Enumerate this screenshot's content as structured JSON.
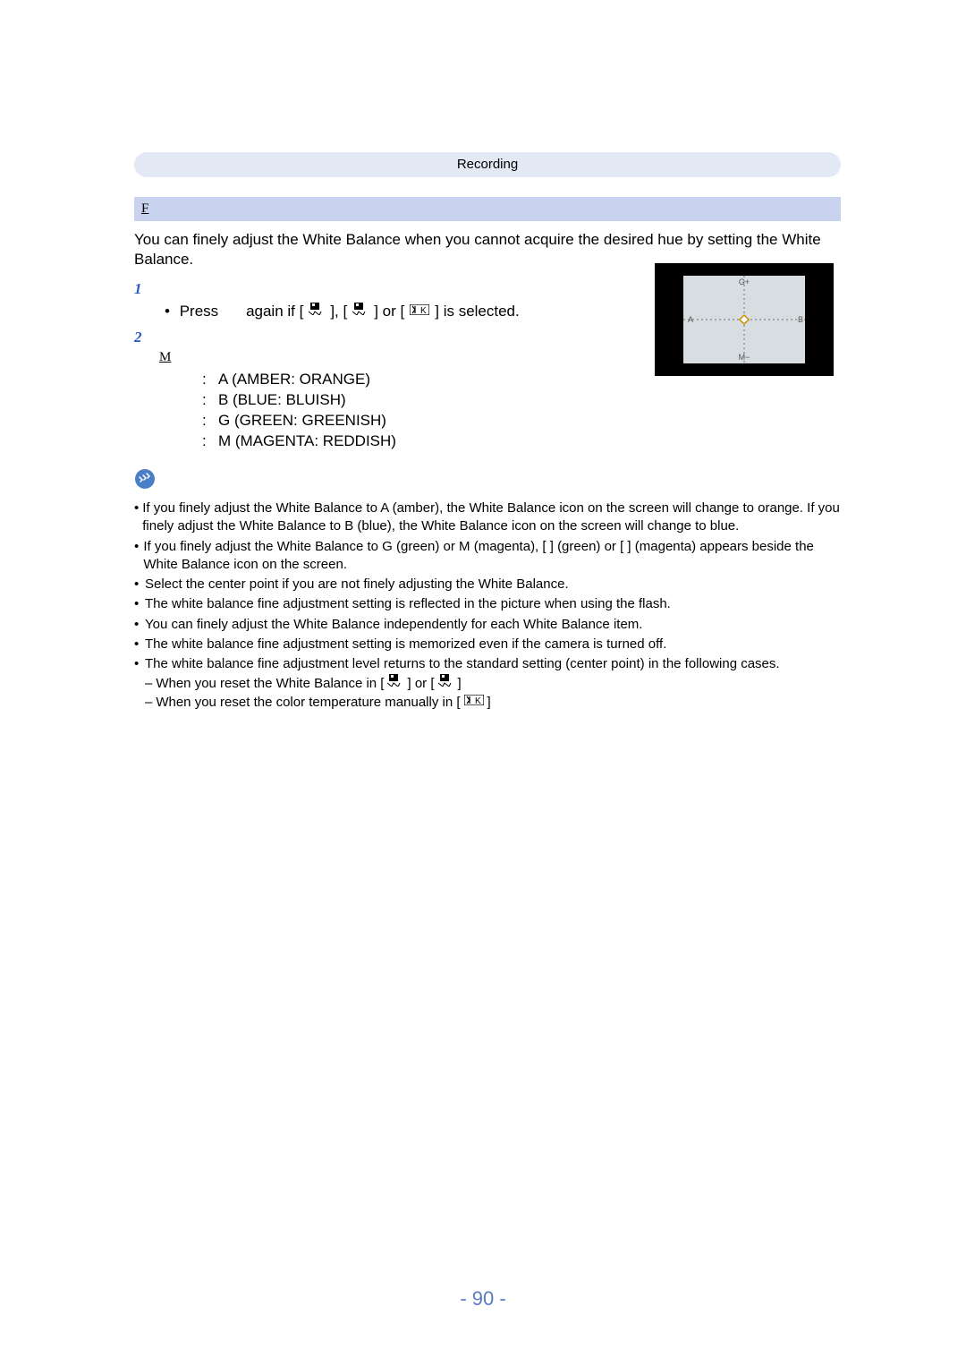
{
  "header": {
    "category": "Recording"
  },
  "subheader": {
    "label": "F"
  },
  "intro": "You can finely adjust the White Balance when you cannot acquire the desired hue by setting the White Balance.",
  "steps": {
    "s1_press": "Press",
    "s1_again": "again if [",
    "s1_mid1": "], [",
    "s1_mid2": "] or [",
    "s1_end": "] is selected.",
    "m_glyph": "M"
  },
  "directions": {
    "a": "A (AMBER: ORANGE)",
    "b": "B (BLUE: BLUISH)",
    "g": "G    (GREEN: GREENISH)",
    "m": "M    (MAGENTA: REDDISH)"
  },
  "notes": {
    "n1": "If you finely adjust the White Balance to A (amber), the White Balance icon on the screen will change to orange. If you finely adjust the White Balance to B (blue), the White Balance icon on the screen will change to blue.",
    "n2": "If you finely adjust the White Balance to G    (green) or M    (magenta), [   ] (green) or [   ] (magenta) appears beside the White Balance icon on the screen.",
    "n3": "Select the center point if you are not finely adjusting the White Balance.",
    "n4": "The white balance fine adjustment setting is reflected in the picture when using the flash.",
    "n5": "You can finely adjust the White Balance independently for each White Balance item.",
    "n6": "The white balance fine adjustment setting is memorized even if the camera is turned off.",
    "n7": "The white balance fine adjustment level returns to the standard setting (center point) in the following cases.",
    "n7a": "When you reset the White Balance in [",
    "n7a_mid": "] or [",
    "n7a_end": "]",
    "n7b": "When you reset the color temperature manually in [",
    "n7b_end": "]"
  },
  "diagram": {
    "labels": {
      "top": "G+",
      "bottom": "M−",
      "left": "A",
      "right": "B"
    },
    "colors": {
      "outer": "#000000",
      "inner": "#d7dde0",
      "axis": "#6f6f6f",
      "center_stroke": "#d08a00",
      "center_fill": "#ffffff",
      "label": "#555555"
    }
  },
  "pageNumber": "- 90 -",
  "colors": {
    "band_light": "#e3e8f5",
    "band_dark": "#c9d3ef",
    "step_num": "#2a56c6",
    "pagenum": "#5b7abf",
    "note_icon_bg": "#4a7fc8",
    "note_icon_stroke": "#ffffff"
  }
}
